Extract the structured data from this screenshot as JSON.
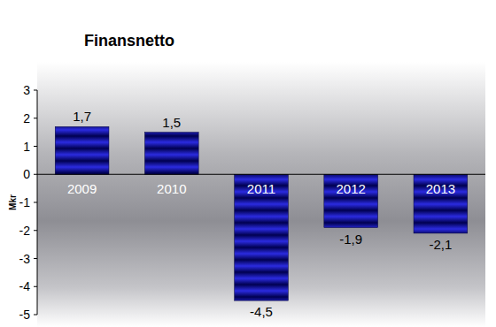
{
  "chart_data": {
    "type": "bar",
    "title": "Finansnetto",
    "y_label": "Mkr",
    "categories": [
      "2009",
      "2010",
      "2011",
      "2012",
      "2013"
    ],
    "values": [
      1.7,
      1.5,
      -4.5,
      -1.9,
      -2.1
    ],
    "value_labels": [
      "1,7",
      "1,5",
      "-4,5",
      "-1,9",
      "-2,1"
    ],
    "color": "#2b2be0",
    "ylim": [
      -5,
      3
    ],
    "yticks": [
      -5,
      -4,
      -3,
      -2,
      -1,
      0,
      1,
      2,
      3
    ],
    "grid": false,
    "data_labels": true
  }
}
